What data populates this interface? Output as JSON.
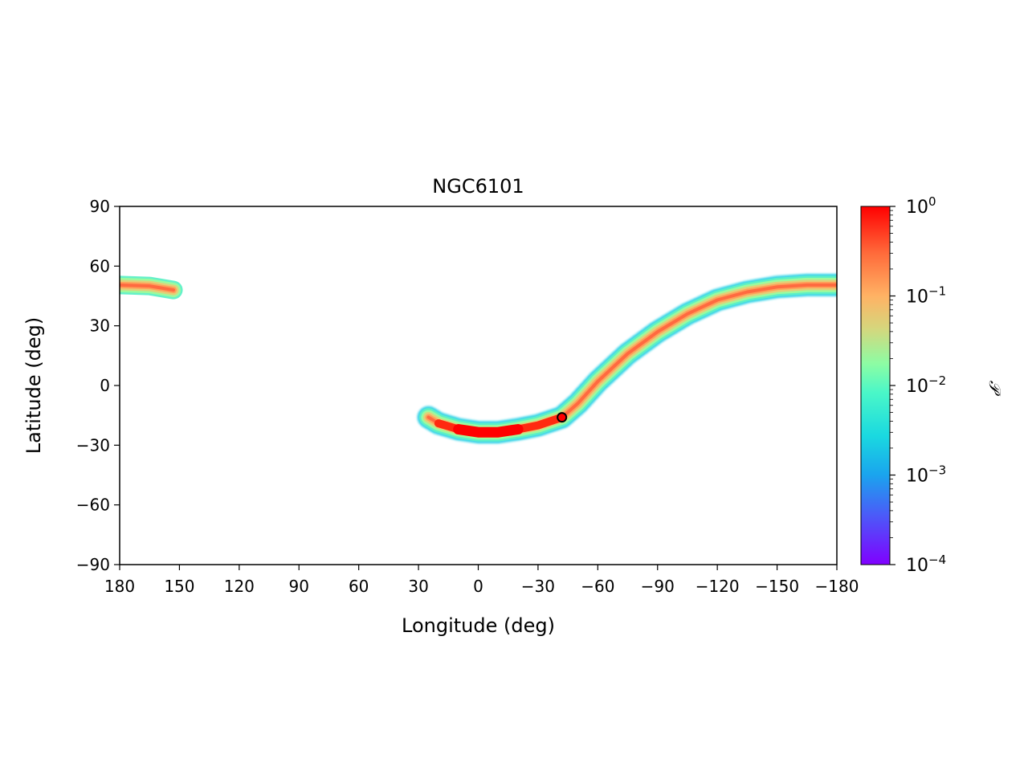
{
  "chart_data": {
    "type": "heatmap",
    "title": "NGC6101",
    "xlabel": "Longitude (deg)",
    "ylabel": "Latitude (deg)",
    "xlim": [
      180,
      -180
    ],
    "ylim": [
      -90,
      90
    ],
    "x_ticks": [
      180,
      150,
      120,
      90,
      60,
      30,
      0,
      -30,
      -60,
      -90,
      -120,
      -150,
      -180
    ],
    "x_tick_labels": [
      "180",
      "150",
      "120",
      "90",
      "60",
      "30",
      "0",
      "−30",
      "−60",
      "−90",
      "−120",
      "−150",
      "−180"
    ],
    "y_ticks": [
      90,
      60,
      30,
      0,
      -30,
      -60,
      -90
    ],
    "y_tick_labels": [
      "90",
      "60",
      "30",
      "0",
      "−30",
      "−60",
      "−90"
    ],
    "grid": false,
    "colormap": "rainbow",
    "colorbar": {
      "label": "𝒫",
      "scale": "log",
      "range": [
        0.0001,
        1
      ],
      "ticks": [
        1,
        0.1,
        0.01,
        0.001,
        0.0001
      ],
      "tick_base": "10",
      "tick_exponents": [
        "0",
        "−1",
        "−2",
        "−3",
        "−4"
      ]
    },
    "stream_track": [
      {
        "lon": -180,
        "lat": 50.5
      },
      {
        "lon": -165,
        "lat": 50.5
      },
      {
        "lon": -150,
        "lat": 49.5
      },
      {
        "lon": -135,
        "lat": 47
      },
      {
        "lon": -120,
        "lat": 43
      },
      {
        "lon": -105,
        "lat": 36
      },
      {
        "lon": -90,
        "lat": 27
      },
      {
        "lon": -75,
        "lat": 16
      },
      {
        "lon": -60,
        "lat": 2
      },
      {
        "lon": -50,
        "lat": -9
      },
      {
        "lon": -42,
        "lat": -16
      },
      {
        "lon": -30,
        "lat": -20
      },
      {
        "lon": -20,
        "lat": -22
      },
      {
        "lon": -10,
        "lat": -23.5
      },
      {
        "lon": 0,
        "lat": -23.5
      },
      {
        "lon": 10,
        "lat": -22
      },
      {
        "lon": 20,
        "lat": -19
      },
      {
        "lon": 25,
        "lat": -16
      }
    ],
    "wrapped_segment": [
      {
        "lon": 180,
        "lat": 50.5
      },
      {
        "lon": 165,
        "lat": 50
      },
      {
        "lon": 153,
        "lat": 48
      }
    ],
    "cluster_position": {
      "lon": -42,
      "lat": -16,
      "color": "#ff0000"
    }
  }
}
